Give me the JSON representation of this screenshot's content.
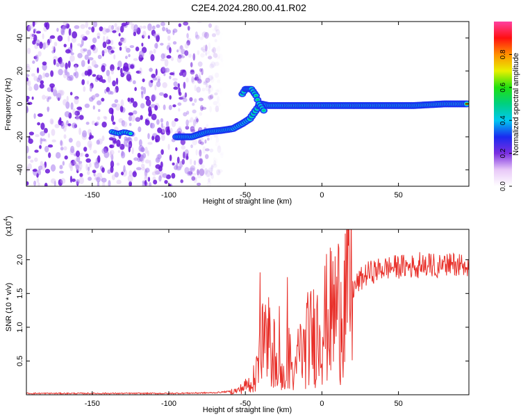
{
  "title": "C2E4.2024.280.00.41.R02",
  "colors": {
    "snr_line": "#e8302a",
    "axis": "#000000",
    "background": "#ffffff",
    "sparse_blob": "#a678ee",
    "dense_blob": "#6a16d8"
  },
  "chart_data": [
    {
      "type": "heatmap",
      "xlabel": "Height of straight line (km)",
      "ylabel": "Frequency (Hz)",
      "xlim": [
        -193,
        96
      ],
      "ylim": [
        -50,
        50
      ],
      "xticks": [
        -150,
        -100,
        -50,
        0,
        50
      ],
      "yticks": [
        -40,
        -20,
        0,
        20,
        40
      ],
      "grid": false,
      "colorbar": {
        "label": "Normalized spectral amplitude",
        "range": [
          0,
          1
        ],
        "ticks": [
          "0.0",
          "0.2",
          "0.4",
          "0.6",
          "0.8"
        ],
        "colormap": [
          "#ffffff",
          "#e8c8f8",
          "#7a2ee0",
          "#1a2af0",
          "#00c8f0",
          "#00d080",
          "#20e010",
          "#e8f000",
          "#ff9000",
          "#ff1010",
          "#ff40a0"
        ]
      },
      "main_trace": {
        "description_points_x": [
          -95,
          -85,
          -75,
          -65,
          -58,
          -52,
          -47,
          -44,
          -40,
          -35,
          -30,
          -25,
          -15,
          0,
          20,
          40,
          60,
          80,
          95
        ],
        "frequency_hz": [
          -20,
          -20,
          -17,
          -16,
          -15,
          -12,
          -9,
          -5,
          0,
          -1,
          -1,
          -1,
          -1,
          -1,
          -1,
          -1,
          -1,
          0,
          0
        ]
      },
      "upper_branch": {
        "x": [
          -52,
          -50,
          -46,
          -43,
          -41,
          -38
        ],
        "frequency_hz": [
          6,
          9,
          9,
          5,
          0,
          -4
        ]
      },
      "isolated_feature": {
        "x": [
          -137,
          -133,
          -129,
          -125
        ],
        "frequency_hz": [
          -17,
          -18,
          -17,
          -18
        ]
      },
      "noise_region_x": [
        -193,
        -65
      ]
    },
    {
      "type": "line",
      "xlabel": "Height of straight line (km)",
      "ylabel": "SNR (10 * v/v)",
      "scale_label": "(x10",
      "scale_exponent": "4",
      "multiplier": 10000,
      "xlim": [
        -193,
        96
      ],
      "ylim": [
        0,
        2.45
      ],
      "xticks": [
        -150,
        -100,
        -50,
        0,
        50
      ],
      "yticks": [
        0.5,
        1.0,
        1.5,
        2.0
      ],
      "grid": false,
      "envelope": {
        "x": [
          -193,
          -100,
          -70,
          -55,
          -45,
          -40,
          -37,
          -35,
          -32,
          -30,
          -28,
          -25,
          -22,
          -20,
          -18,
          -15,
          -12,
          -10,
          -5,
          0,
          5,
          10,
          15,
          20,
          25,
          30,
          40,
          50,
          60,
          70,
          80,
          90,
          96
        ],
        "y": [
          0.02,
          0.02,
          0.03,
          0.06,
          0.2,
          0.6,
          0.9,
          0.5,
          0.8,
          0.4,
          0.35,
          0.25,
          0.6,
          0.45,
          0.2,
          0.7,
          0.6,
          0.8,
          0.9,
          1.05,
          1.15,
          1.3,
          1.45,
          1.55,
          1.7,
          1.8,
          1.87,
          1.9,
          1.9,
          1.92,
          1.9,
          1.95,
          1.9
        ]
      }
    }
  ]
}
